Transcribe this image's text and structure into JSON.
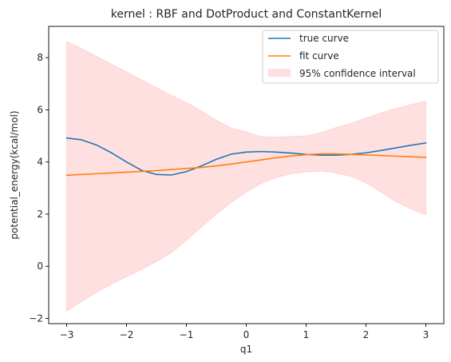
{
  "chart_data": {
    "type": "line",
    "title": "kernel : RBF and DotProduct and ConstantKernel",
    "xlabel": "q1",
    "ylabel": "potential_energy(kcal/mol)",
    "xlim": [
      -3.3,
      3.3
    ],
    "ylim": [
      -2.2,
      9.2
    ],
    "xticks": [
      -3,
      -2,
      -1,
      0,
      1,
      2,
      3
    ],
    "yticks": [
      -2,
      0,
      2,
      4,
      6,
      8
    ],
    "grid": false,
    "legend_position": "top-right",
    "x": [
      -3.0,
      -2.75,
      -2.5,
      -2.25,
      -2.0,
      -1.75,
      -1.5,
      -1.25,
      -1.0,
      -0.75,
      -0.5,
      -0.25,
      0.0,
      0.25,
      0.5,
      0.75,
      1.0,
      1.25,
      1.5,
      1.75,
      2.0,
      2.25,
      2.5,
      2.75,
      3.0
    ],
    "series": [
      {
        "name": "true curve",
        "color": "#1f77b4",
        "values": [
          4.92,
          4.85,
          4.65,
          4.35,
          4.0,
          3.68,
          3.52,
          3.5,
          3.63,
          3.85,
          4.1,
          4.3,
          4.38,
          4.4,
          4.38,
          4.34,
          4.29,
          4.26,
          4.26,
          4.29,
          4.35,
          4.44,
          4.54,
          4.64,
          4.73
        ]
      },
      {
        "name": "fit curve",
        "color": "#ff7f0e",
        "values": [
          3.49,
          3.52,
          3.55,
          3.58,
          3.61,
          3.64,
          3.67,
          3.71,
          3.75,
          3.79,
          3.85,
          3.92,
          4.0,
          4.08,
          4.16,
          4.23,
          4.28,
          4.31,
          4.31,
          4.29,
          4.27,
          4.25,
          4.22,
          4.2,
          4.18
        ]
      }
    ],
    "band": {
      "name": "95% confidence interval",
      "color": "#ff9999",
      "upper": [
        8.62,
        8.35,
        8.05,
        7.75,
        7.45,
        7.15,
        6.85,
        6.55,
        6.28,
        5.95,
        5.6,
        5.3,
        5.15,
        4.97,
        4.95,
        4.98,
        5.0,
        5.12,
        5.32,
        5.48,
        5.68,
        5.88,
        6.05,
        6.2,
        6.33
      ],
      "lower": [
        -1.72,
        -1.35,
        -1.0,
        -0.68,
        -0.4,
        -0.12,
        0.18,
        0.52,
        1.0,
        1.5,
        2.0,
        2.45,
        2.85,
        3.18,
        3.4,
        3.55,
        3.62,
        3.65,
        3.58,
        3.45,
        3.2,
        2.85,
        2.48,
        2.2,
        1.97
      ]
    }
  }
}
